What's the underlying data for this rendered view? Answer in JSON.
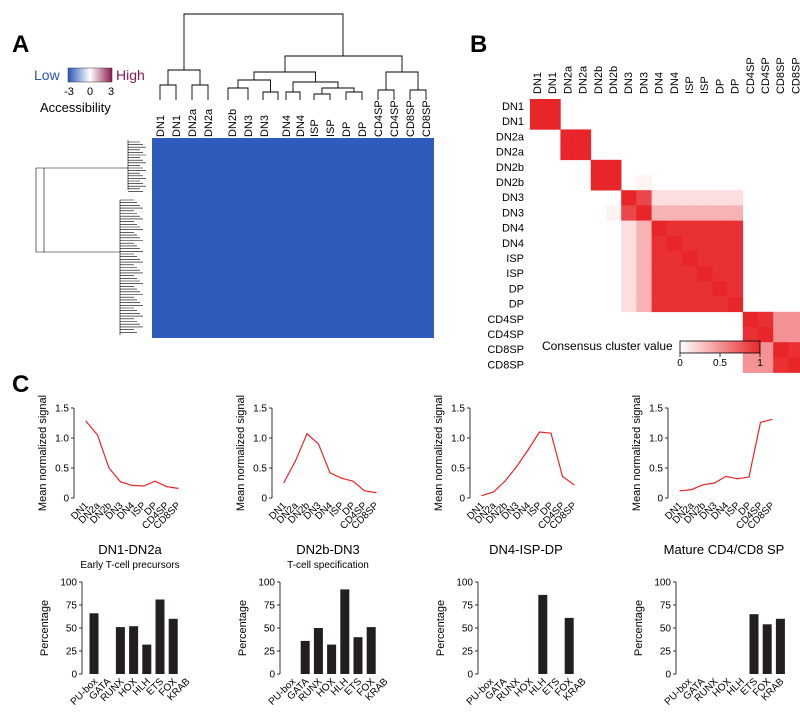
{
  "panels": {
    "a": "A",
    "b": "B",
    "c": "C"
  },
  "panel_a": {
    "legend": {
      "low": "Low",
      "high": "High",
      "ticks": [
        "-3",
        "0",
        "3"
      ],
      "title": "Accessibility",
      "low_color": "#2a55b8",
      "mid_color": "#ffffff",
      "high_color": "#8b1a4f"
    },
    "columns": [
      "DN1",
      "DN1",
      "DN2a",
      "DN2a",
      "DN2b",
      "DN3",
      "DN3",
      "DN4",
      "DN4",
      "ISP",
      "ISP",
      "DP",
      "DP",
      "CD4SP",
      "CD4SP",
      "CD8SP",
      "CD8SP"
    ]
  },
  "panel_b": {
    "rows": [
      "DN1",
      "DN1",
      "DN2a",
      "DN2a",
      "DN2b",
      "DN2b",
      "DN3",
      "DN3",
      "DN4",
      "DN4",
      "ISP",
      "ISP",
      "DP",
      "DP",
      "CD4SP",
      "CD4SP",
      "CD8SP",
      "CD8SP"
    ],
    "legend_title": "Consensus cluster value",
    "legend_ticks": [
      "0",
      "0.5",
      "1"
    ],
    "high_color": "#e8262a"
  },
  "panel_c": {
    "line_ylabel": "Mean normalized signal",
    "bar_ylabel": "Percentage",
    "line_color": "#e8262a",
    "bar_color": "#231f20"
  },
  "chart_data": [
    {
      "type": "line",
      "title": "",
      "xlabel": "",
      "ylabel": "Mean normalized signal",
      "ylim": [
        0,
        1.5
      ],
      "yticks": [
        "0",
        "0.5",
        "1.0",
        "1.5"
      ],
      "categories": [
        "DN1",
        "DN2a",
        "DN2b",
        "DN3",
        "DN4",
        "ISP",
        "DP",
        "CD4SP",
        "CD8SP"
      ],
      "values": [
        1.28,
        1.05,
        0.5,
        0.27,
        0.21,
        0.2,
        0.28,
        0.19,
        0.16
      ]
    },
    {
      "type": "line",
      "title": "",
      "xlabel": "",
      "ylabel": "Mean normalized signal",
      "ylim": [
        0,
        1.5
      ],
      "yticks": [
        "0",
        "0.5",
        "1.0",
        "1.5"
      ],
      "categories": [
        "DN1",
        "DN2a",
        "DN2b",
        "DN3",
        "DN4",
        "ISP",
        "DP",
        "CD4SP",
        "CD8SP"
      ],
      "values": [
        0.26,
        0.62,
        1.07,
        0.9,
        0.42,
        0.33,
        0.28,
        0.12,
        0.09
      ]
    },
    {
      "type": "line",
      "title": "",
      "xlabel": "",
      "ylabel": "Mean normalized signal",
      "ylim": [
        0,
        1.5
      ],
      "yticks": [
        "0",
        "0.5",
        "1.0",
        "1.5"
      ],
      "categories": [
        "DN1",
        "DN2a",
        "DN2b",
        "DN3",
        "DN4",
        "ISP",
        "DP",
        "CD4SP",
        "CD8SP"
      ],
      "values": [
        0.04,
        0.1,
        0.28,
        0.52,
        0.8,
        1.1,
        1.08,
        0.36,
        0.22
      ]
    },
    {
      "type": "line",
      "title": "",
      "xlabel": "",
      "ylabel": "Mean normalized signal",
      "ylim": [
        0,
        1.5
      ],
      "yticks": [
        "0",
        "0.5",
        "1.0",
        "1.5"
      ],
      "categories": [
        "DN1",
        "DN2a",
        "DN2b",
        "DN3",
        "DN4",
        "ISP",
        "DP",
        "CD4SP",
        "CD8SP"
      ],
      "values": [
        0.12,
        0.14,
        0.22,
        0.25,
        0.36,
        0.32,
        0.35,
        1.26,
        1.31
      ]
    },
    {
      "type": "bar",
      "title": "DN1-DN2a",
      "subtitle": "Early T-cell precursors",
      "xlabel": "",
      "ylabel": "Percentage",
      "ylim": [
        0,
        100
      ],
      "yticks": [
        "0",
        "25",
        "50",
        "75",
        "100"
      ],
      "categories": [
        "PU-box",
        "GATA",
        "RUNX",
        "HOX",
        "HLH",
        "ETS",
        "FOX",
        "KRAB"
      ],
      "values": [
        66,
        0,
        51,
        52,
        32,
        81,
        60,
        0
      ]
    },
    {
      "type": "bar",
      "title": "DN2b-DN3",
      "subtitle": "T-cell specification",
      "xlabel": "",
      "ylabel": "Percentage",
      "ylim": [
        0,
        100
      ],
      "yticks": [
        "0",
        "25",
        "50",
        "75",
        "100"
      ],
      "categories": [
        "PU-box",
        "GATA",
        "RUNX",
        "HOX",
        "HLH",
        "ETS",
        "FOX",
        "KRAB"
      ],
      "values": [
        0,
        36,
        50,
        32,
        92,
        40,
        51,
        0
      ]
    },
    {
      "type": "bar",
      "title": "DN4-ISP-DP",
      "subtitle": "",
      "xlabel": "",
      "ylabel": "Percentage",
      "ylim": [
        0,
        100
      ],
      "yticks": [
        "0",
        "25",
        "50",
        "75",
        "100"
      ],
      "categories": [
        "PU-box",
        "GATA",
        "RUNX",
        "HOX",
        "HLH",
        "ETS",
        "FOX",
        "KRAB"
      ],
      "values": [
        0,
        0,
        0,
        0,
        86,
        0,
        61,
        0
      ]
    },
    {
      "type": "bar",
      "title": "Mature CD4/CD8 SP",
      "subtitle": "",
      "xlabel": "",
      "ylabel": "Percentage",
      "ylim": [
        0,
        100
      ],
      "yticks": [
        "0",
        "25",
        "50",
        "75",
        "100"
      ],
      "categories": [
        "PU-box",
        "GATA",
        "RUNX",
        "HOX",
        "HLH",
        "ETS",
        "FOX",
        "KRAB"
      ],
      "values": [
        0,
        0,
        0,
        0,
        0,
        65,
        54,
        60
      ]
    }
  ]
}
